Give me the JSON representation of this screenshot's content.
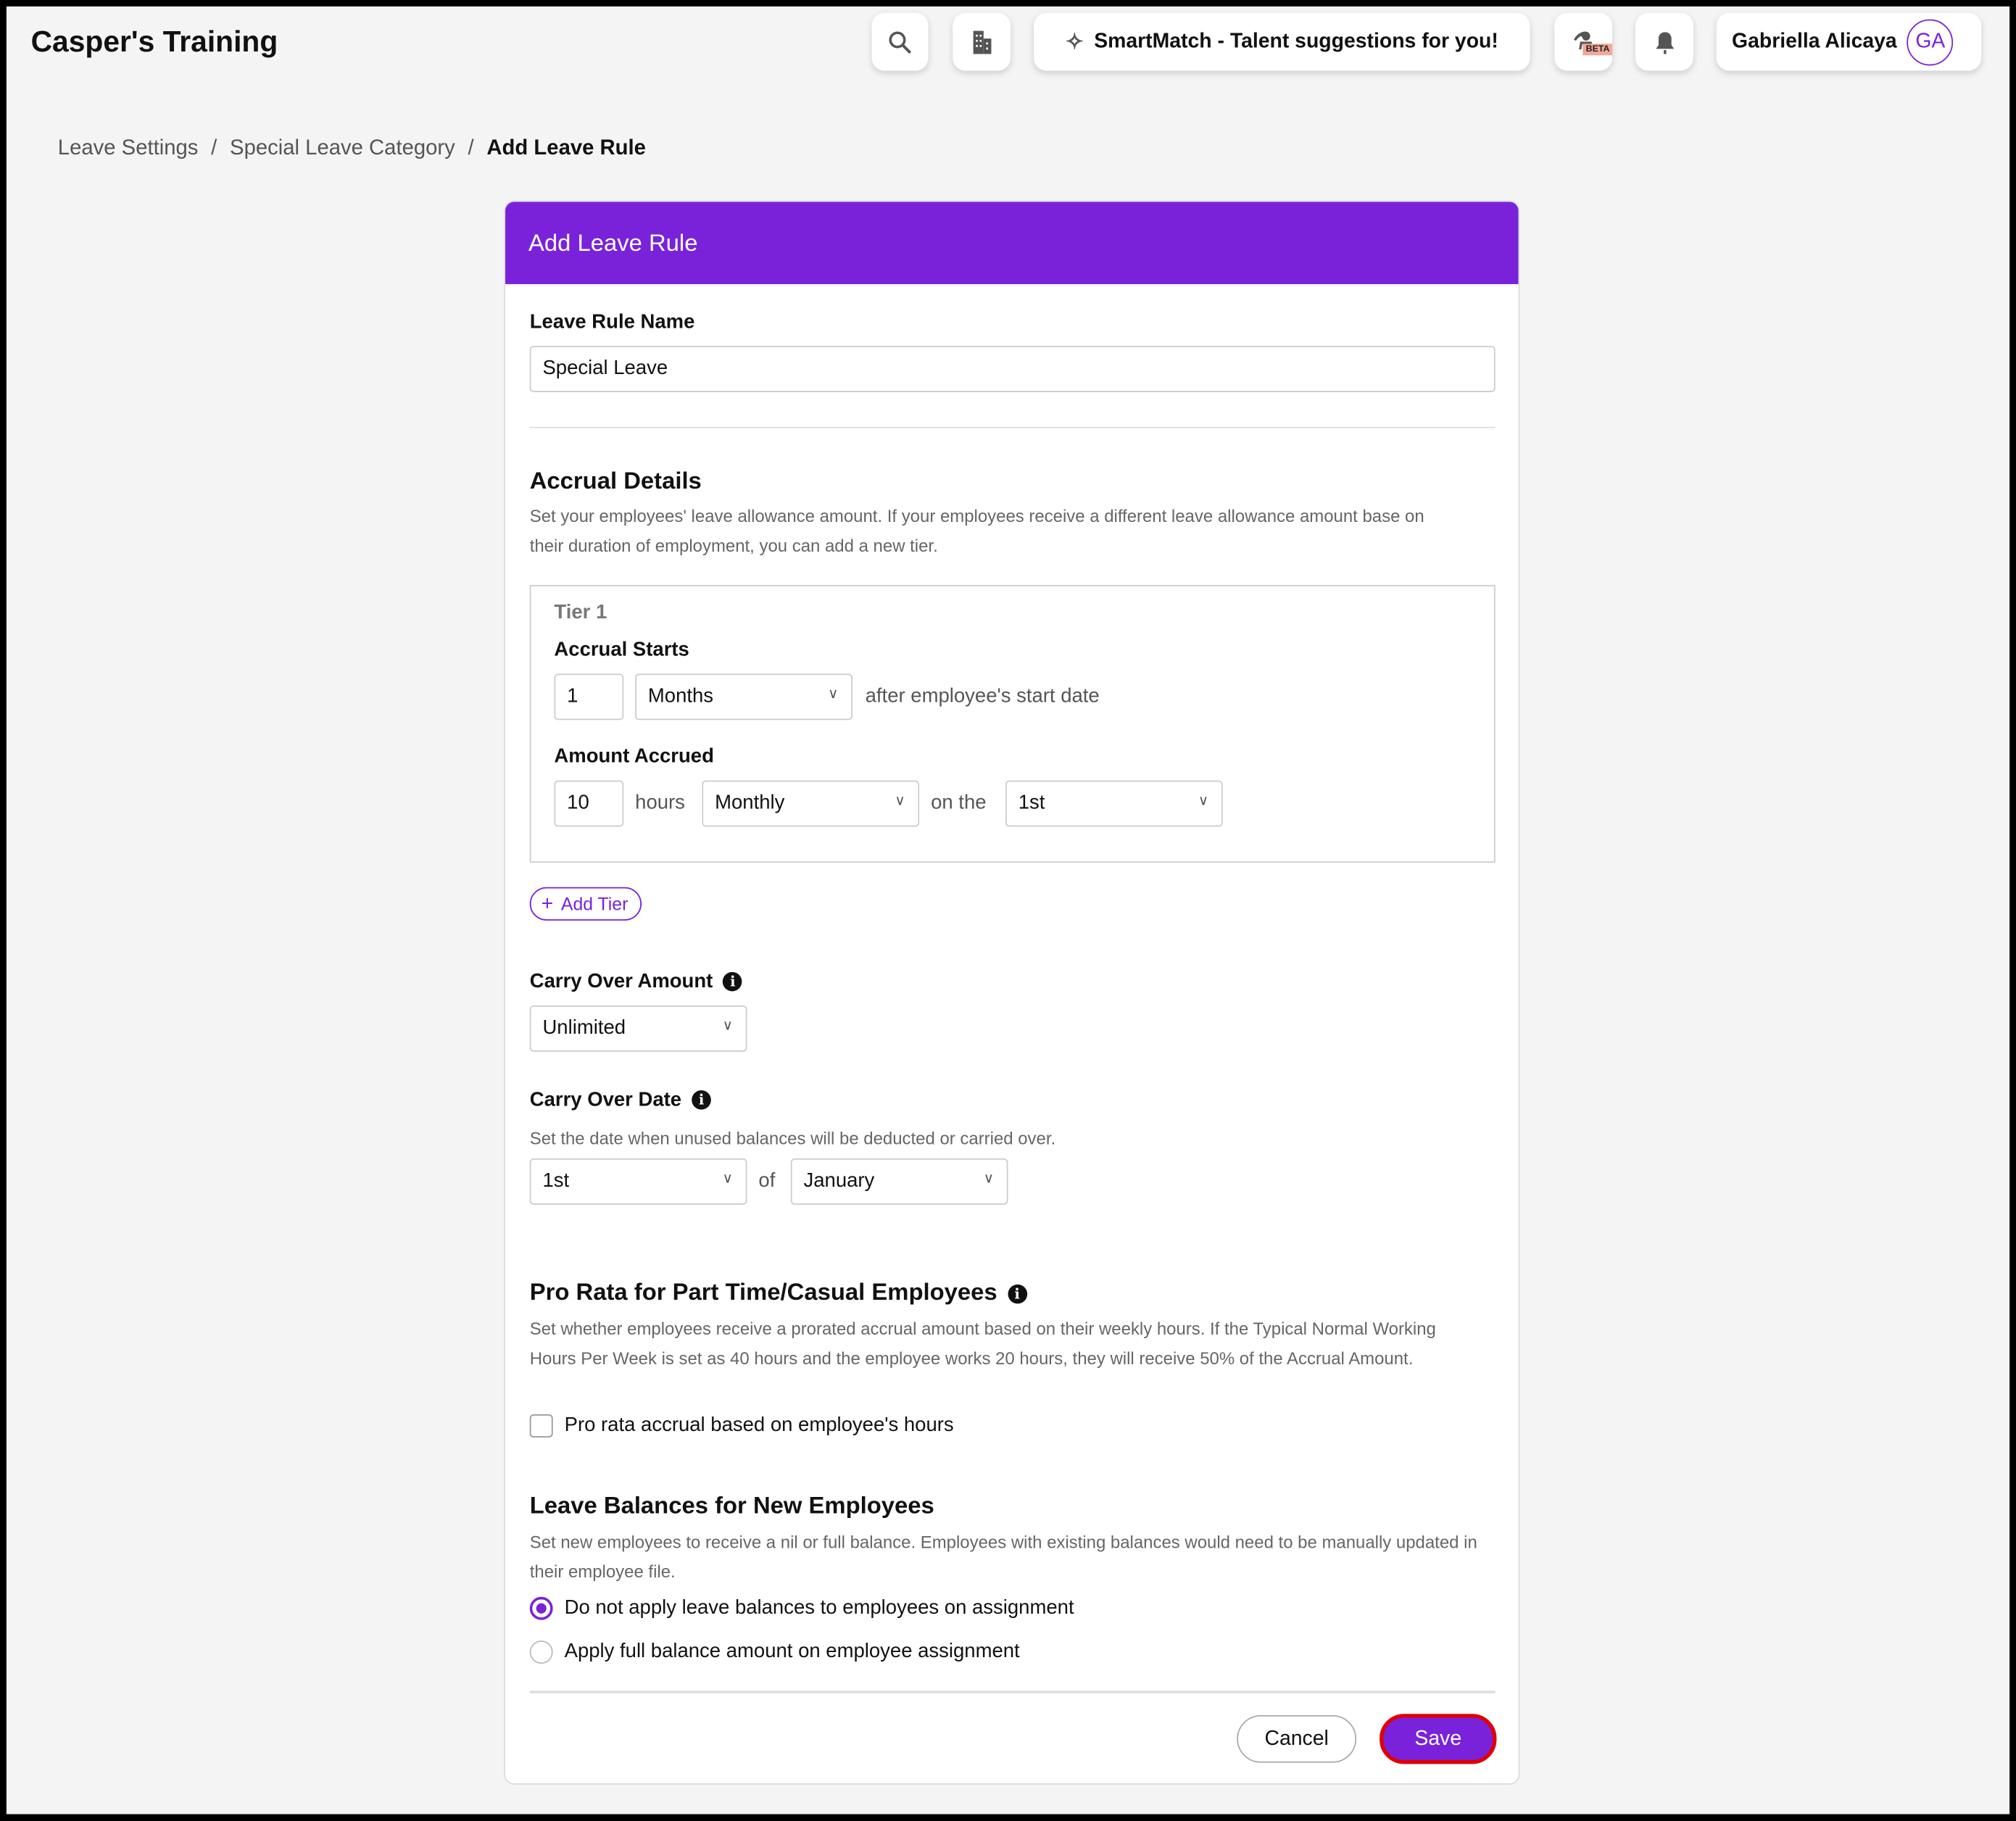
{
  "app": {
    "title": "Casper's Training"
  },
  "header": {
    "smartmatch": "SmartMatch - Talent suggestions for you!",
    "beta": "BETA",
    "user_name": "Gabriella Alicaya",
    "user_initials": "GA"
  },
  "breadcrumb": [
    "Leave Settings",
    "Special Leave Category",
    "Add Leave Rule"
  ],
  "form": {
    "title": "Add Leave Rule",
    "name_label": "Leave Rule Name",
    "name_value": "Special Leave",
    "accrual_title": "Accrual Details",
    "accrual_desc": "Set your employees' leave allowance amount. If your employees receive a different leave allowance amount base on their duration of employment, you can add a new tier.",
    "tier_label": "Tier 1",
    "accrual_starts_label": "Accrual Starts",
    "starts_value": "1",
    "starts_unit": "Months",
    "starts_suffix": "after employee's start date",
    "amount_label": "Amount Accrued",
    "amount_value": "10",
    "hours": "hours",
    "frequency": "Monthly",
    "on_the": "on the",
    "day": "1st",
    "add_tier": "Add Tier",
    "carry_amount_label": "Carry Over Amount",
    "carry_amount_value": "Unlimited",
    "carry_date_label": "Carry Over Date",
    "carry_date_desc": "Set the date when unused balances will be deducted or carried over.",
    "carry_day": "1st",
    "of": "of",
    "carry_month": "January",
    "prorata_title": "Pro Rata for Part Time/Casual Employees",
    "prorata_desc": "Set whether employees receive a prorated accrual amount based on their weekly hours. If the Typical Normal Working Hours Per Week is set as 40 hours and the employee works 20 hours, they will receive 50% of the Accrual Amount.",
    "prorata_checkbox": "Pro rata accrual based on employee's hours",
    "prorata_checked": false,
    "balances_title": "Leave Balances for New Employees",
    "balances_desc": "Set new employees to receive a nil or full balance. Employees with existing balances would need to be manually updated in their employee file.",
    "radio_options": [
      "Do not apply leave balances to employees on assignment",
      "Apply full balance amount on employee assignment"
    ],
    "radio_selected": 0,
    "cancel": "Cancel",
    "save": "Save"
  },
  "colors": {
    "accent": "#7a22d9",
    "save_outline": "#e00000"
  }
}
